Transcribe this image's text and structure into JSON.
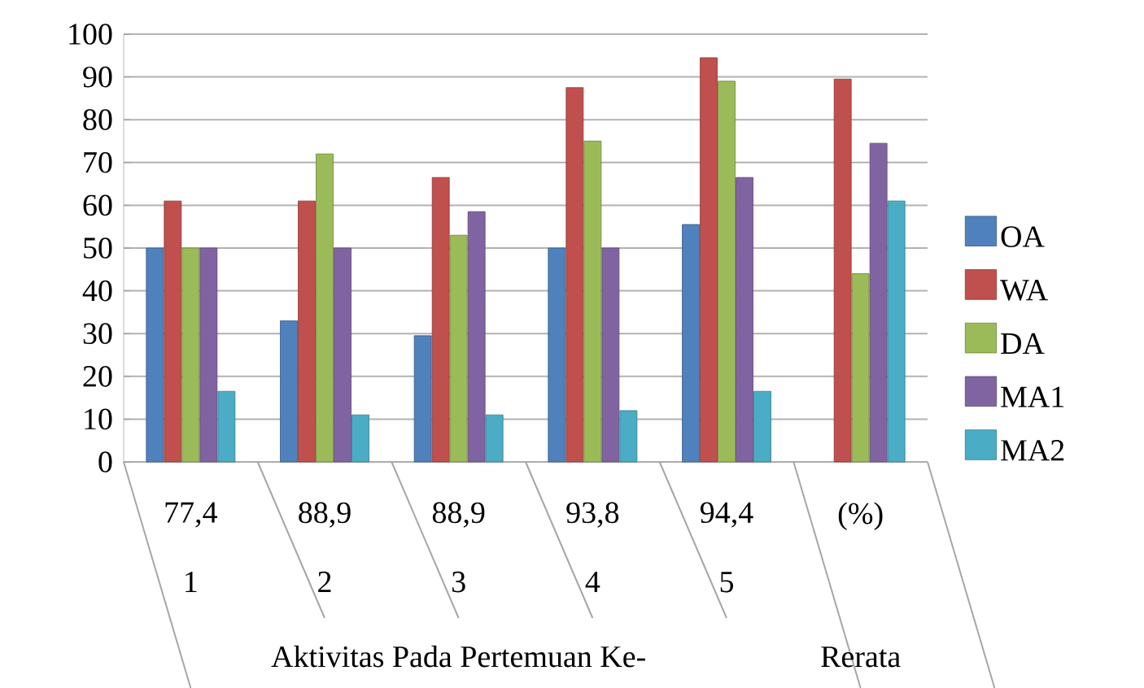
{
  "chart_data": {
    "type": "bar",
    "categories": [
      "77,4",
      "88,9",
      "88,9",
      "93,8",
      "94,4",
      "(%)"
    ],
    "series": [
      {
        "name": "OA",
        "color": "#4f81bd",
        "values": [
          50,
          33,
          29.5,
          50,
          55.5,
          null
        ]
      },
      {
        "name": "WA",
        "color": "#c0504d",
        "values": [
          61,
          61,
          66.5,
          87.5,
          94.5,
          89.5
        ]
      },
      {
        "name": "DA",
        "color": "#9bbb59",
        "values": [
          50,
          72,
          53,
          75,
          89,
          44
        ]
      },
      {
        "name": "MA1",
        "color": "#8064a2",
        "values": [
          50,
          50,
          58.5,
          50,
          66.5,
          74.5
        ]
      },
      {
        "name": "MA2",
        "color": "#4bacc6",
        "values": [
          16.5,
          11,
          11,
          12,
          16.5,
          61
        ]
      }
    ],
    "ylim": [
      0,
      100
    ],
    "yticks": [
      0,
      10,
      20,
      30,
      40,
      50,
      60,
      70,
      80,
      90,
      100
    ],
    "grid": "y",
    "legend": "right",
    "annotations": [
      "1",
      "2",
      "3",
      "4",
      "5",
      "Aktivitas Pada Pertemuan Ke-",
      "Rerata"
    ]
  }
}
